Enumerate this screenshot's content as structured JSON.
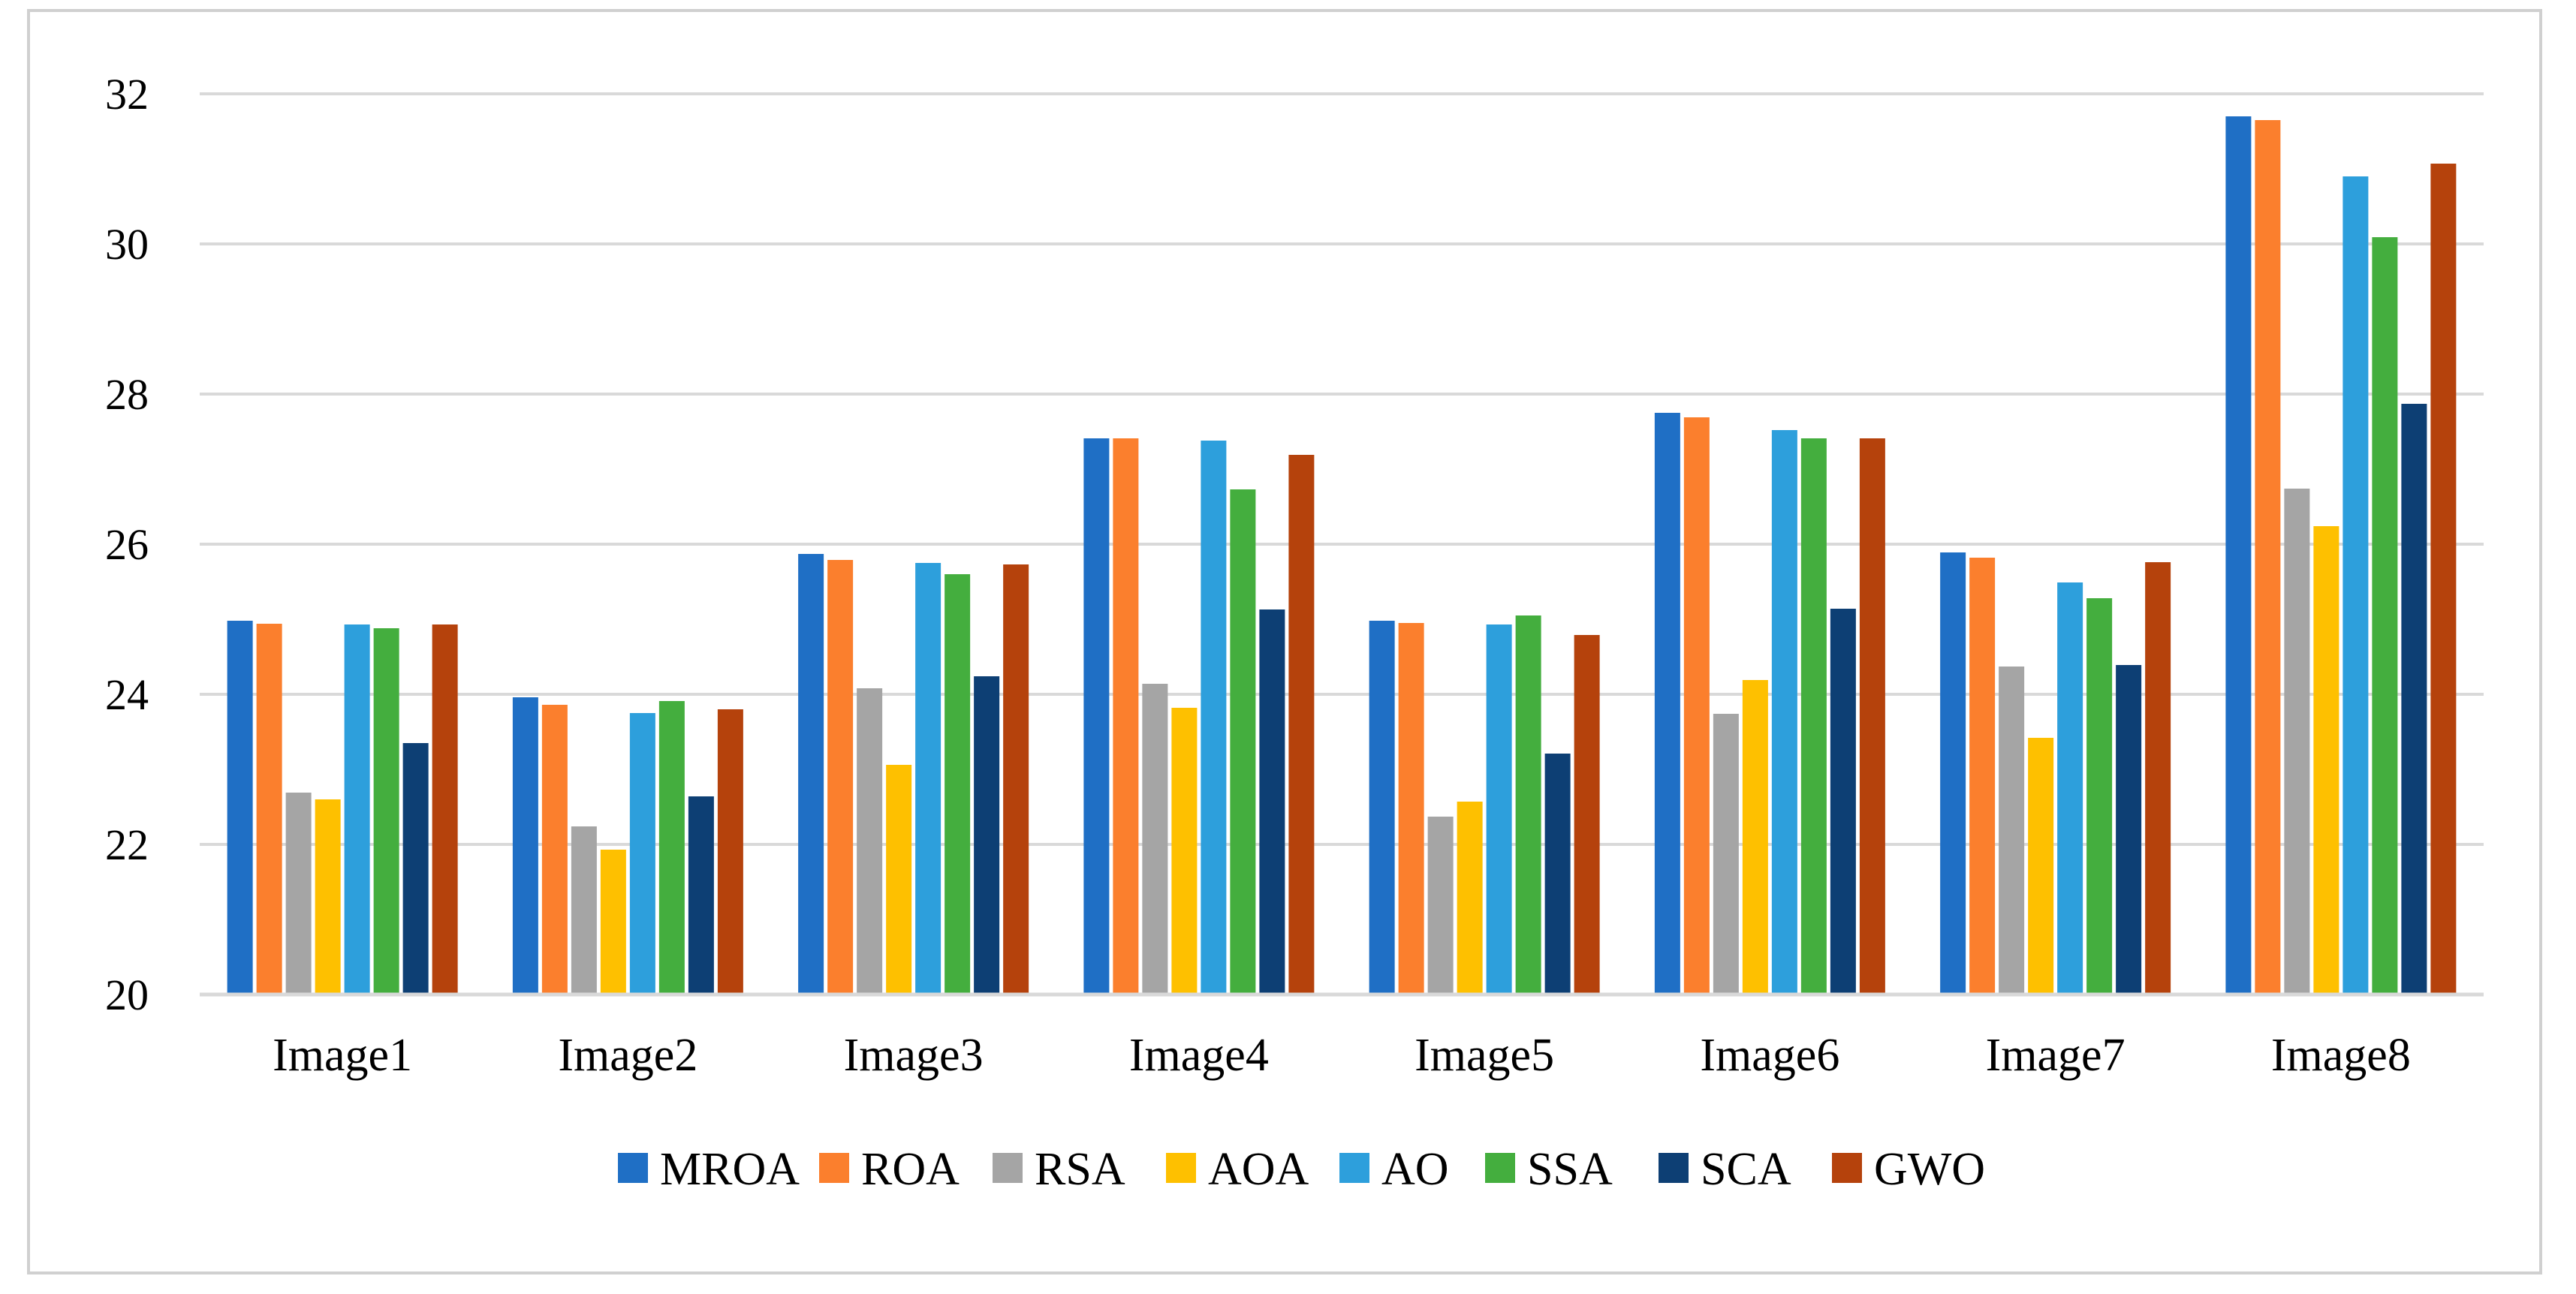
{
  "chart_data": {
    "type": "bar",
    "title": "",
    "xlabel": "",
    "ylabel": "",
    "ylim": [
      20,
      32
    ],
    "yticks": [
      "20",
      "22",
      "24",
      "26",
      "28",
      "30",
      "32"
    ],
    "grid": true,
    "legend_position": "bottom",
    "categories": [
      "Image1",
      "Image2",
      "Image3",
      "Image4",
      "Image5",
      "Image6",
      "Image7",
      "Image8"
    ],
    "series": [
      {
        "name": "MROA",
        "color": "#1f6fc5",
        "values": [
          24.98,
          23.96,
          25.87,
          27.41,
          24.98,
          27.75,
          25.89,
          31.7
        ]
      },
      {
        "name": "ROA",
        "color": "#fb7f2d",
        "values": [
          24.94,
          23.86,
          25.79,
          27.41,
          24.95,
          27.69,
          25.82,
          31.65
        ]
      },
      {
        "name": "RSA",
        "color": "#a5a5a5",
        "values": [
          22.69,
          22.24,
          24.08,
          24.14,
          22.37,
          23.74,
          24.37,
          26.74
        ]
      },
      {
        "name": "AOA",
        "color": "#fec000",
        "values": [
          22.6,
          21.93,
          23.06,
          23.82,
          22.57,
          24.19,
          23.42,
          26.24
        ]
      },
      {
        "name": "AO",
        "color": "#2d9fdc",
        "values": [
          24.93,
          23.75,
          25.75,
          27.38,
          24.93,
          27.52,
          25.49,
          30.9
        ]
      },
      {
        "name": "SSA",
        "color": "#44ae3e",
        "values": [
          24.88,
          23.91,
          25.6,
          26.73,
          25.05,
          27.41,
          25.28,
          30.09
        ]
      },
      {
        "name": "SCA",
        "color": "#0d3f74",
        "values": [
          23.35,
          22.64,
          24.24,
          25.13,
          23.21,
          25.14,
          24.39,
          27.87
        ]
      },
      {
        "name": "GWO",
        "color": "#b5420c",
        "values": [
          24.93,
          23.8,
          25.73,
          27.19,
          24.79,
          27.41,
          25.76,
          31.07
        ]
      }
    ]
  }
}
